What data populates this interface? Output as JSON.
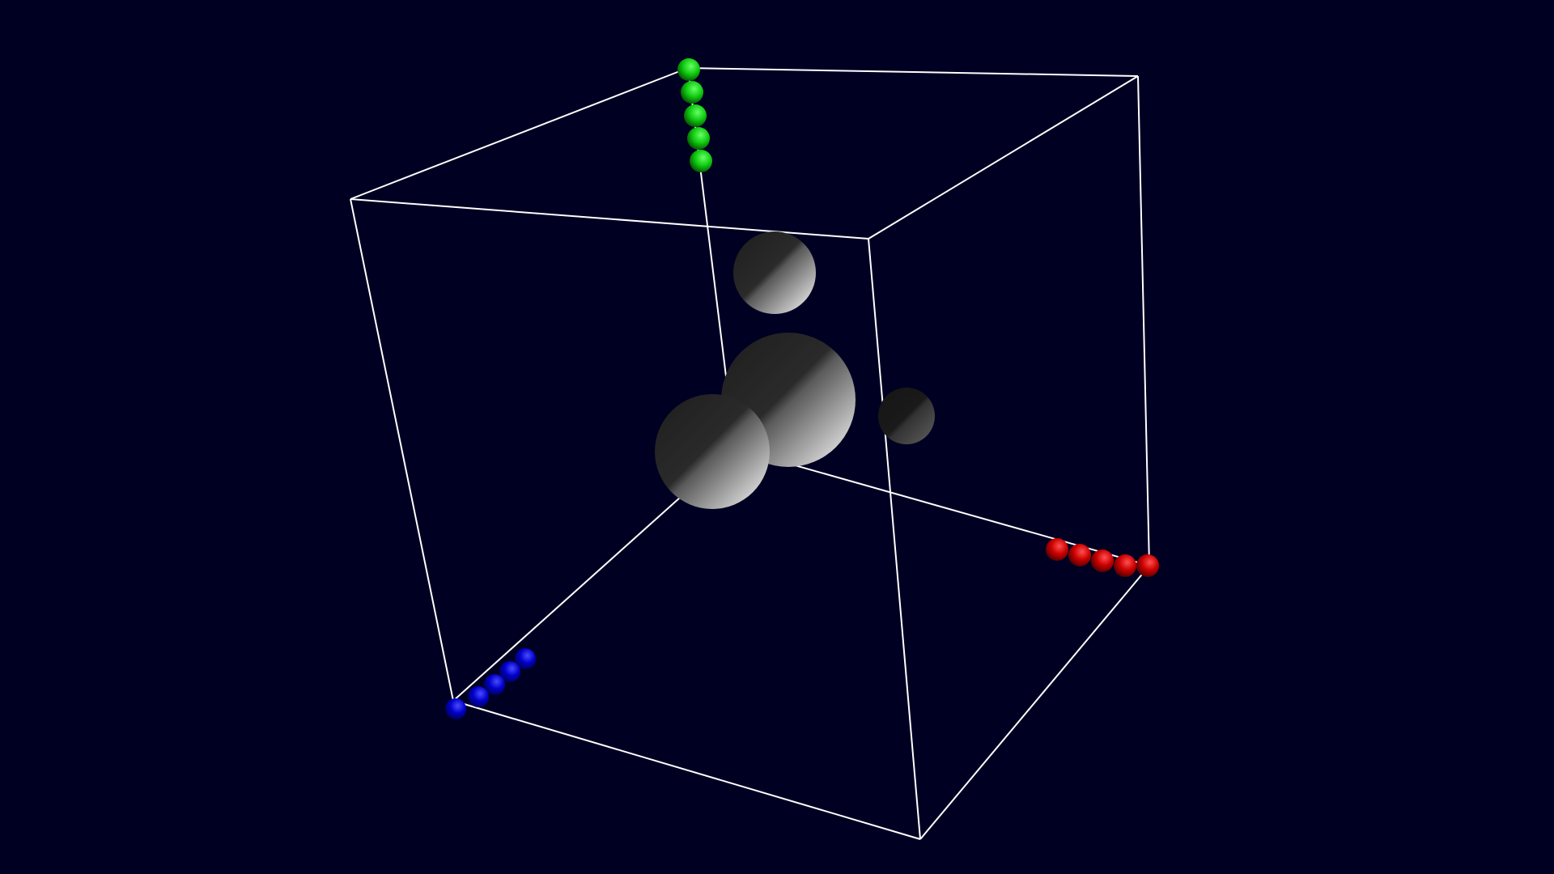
{
  "scene": {
    "background_color": "#000022",
    "box_edge_color": "#ffffff",
    "central_spheres": {
      "count": 4,
      "color": "#ffffff"
    },
    "axis_markers": [
      {
        "axis": "x",
        "color": "#cc0000",
        "count": 5
      },
      {
        "axis": "y",
        "color": "#11cc11",
        "count": 5
      },
      {
        "axis": "z",
        "color": "#0000cc",
        "count": 5
      }
    ]
  }
}
